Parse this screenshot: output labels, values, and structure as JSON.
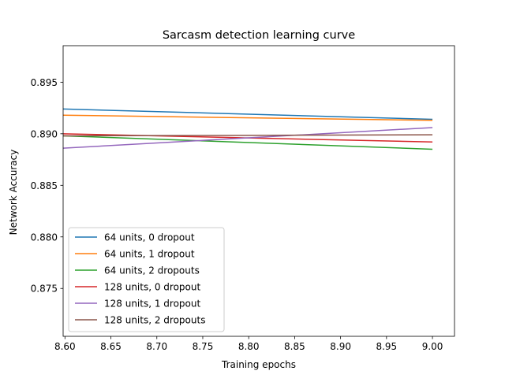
{
  "chart_data": {
    "type": "line",
    "title": "Sarcasm detection learning curve",
    "xlabel": "Training epochs",
    "ylabel": "Network Accuracy",
    "xlim": [
      8.598,
      9.024
    ],
    "ylim": [
      0.87036,
      0.89854
    ],
    "xticks": [
      8.6,
      8.65,
      8.7,
      8.75,
      8.8,
      8.85,
      8.9,
      8.95,
      9.0
    ],
    "xtick_labels": [
      "8.60",
      "8.65",
      "8.70",
      "8.75",
      "8.80",
      "8.85",
      "8.90",
      "8.95",
      "9.00"
    ],
    "yticks": [
      0.875,
      0.88,
      0.885,
      0.89,
      0.895
    ],
    "ytick_labels": [
      "0.875",
      "0.880",
      "0.885",
      "0.890",
      "0.895"
    ],
    "grid": false,
    "legend_position": "lower-left",
    "x": [
      8.598,
      9.0
    ],
    "series": [
      {
        "name": "64 units, 0 dropout",
        "color": "#1f77b4",
        "values": [
          0.8924,
          0.8914
        ]
      },
      {
        "name": "64 units, 1 dropout",
        "color": "#ff7f0e",
        "values": [
          0.8918,
          0.8913
        ]
      },
      {
        "name": "64 units, 2 dropouts",
        "color": "#2ca02c",
        "values": [
          0.8898,
          0.8885
        ]
      },
      {
        "name": "128 units, 0 dropout",
        "color": "#d62728",
        "values": [
          0.89,
          0.8892
        ]
      },
      {
        "name": "128 units, 1 dropout",
        "color": "#9467bd",
        "values": [
          0.8886,
          0.8906
        ]
      },
      {
        "name": "128 units, 2 dropouts",
        "color": "#8c564b",
        "values": [
          0.8898,
          0.8899
        ]
      }
    ]
  }
}
